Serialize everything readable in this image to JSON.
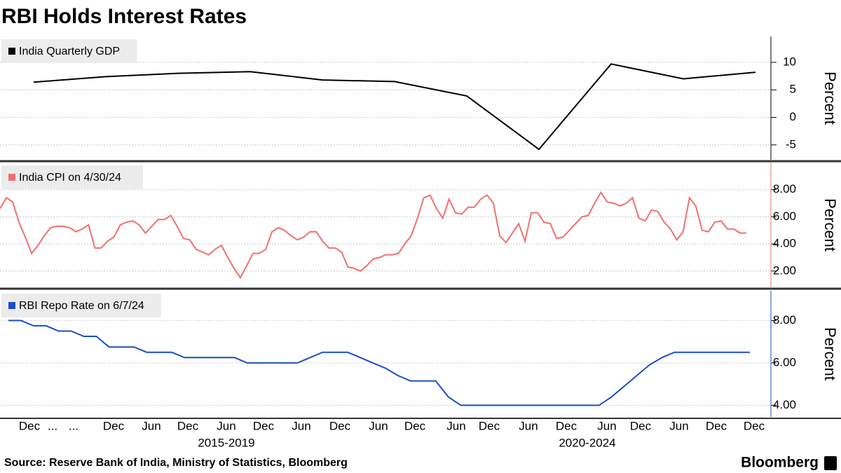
{
  "title": "RBI Holds Interest Rates",
  "chart_data": [
    {
      "type": "line",
      "ylabel": "Percent",
      "ylim": [
        -7.7,
        14.7
      ],
      "yticks": [
        -5,
        0,
        5,
        10
      ],
      "series": [
        {
          "name": "India Quarterly GDP",
          "color": "#000000",
          "values": [
            6.4,
            7.4,
            8.0,
            8.3,
            6.8,
            6.5,
            3.9,
            -5.8,
            9.7,
            7.0,
            8.2
          ]
        }
      ]
    },
    {
      "type": "line",
      "ylabel": "Percent",
      "ylim": [
        0.8,
        10
      ],
      "yticks": [
        {
          "value": 2,
          "label": "2.00"
        },
        {
          "value": 4,
          "label": "4.00"
        },
        {
          "value": 6,
          "label": "6.00"
        },
        {
          "value": 8,
          "label": "8.00"
        }
      ],
      "series": [
        {
          "name": "India CPI on 4/30/24",
          "color": "#f07070",
          "values": [
            6.6,
            7.4,
            7.1,
            5.6,
            4.5,
            3.3,
            3.9,
            4.6,
            5.2,
            5.3,
            5.3,
            5.2,
            4.9,
            5.1,
            5.4,
            3.7,
            3.7,
            4.2,
            4.5,
            5.4,
            5.6,
            5.7,
            5.4,
            4.8,
            5.3,
            5.8,
            5.8,
            6.1,
            5.3,
            4.4,
            4.3,
            3.6,
            3.4,
            3.2,
            3.6,
            3.9,
            3.0,
            2.2,
            1.5,
            2.4,
            3.3,
            3.3,
            3.6,
            4.9,
            5.2,
            5.0,
            4.6,
            4.3,
            4.5,
            4.9,
            4.9,
            4.2,
            3.7,
            3.7,
            3.4,
            2.3,
            2.2,
            2.0,
            2.4,
            2.9,
            3.0,
            3.2,
            3.2,
            3.3,
            4.0,
            4.6,
            5.9,
            7.4,
            7.6,
            6.6,
            5.9,
            7.3,
            6.3,
            6.2,
            6.7,
            6.7,
            7.3,
            7.6,
            7.0,
            4.6,
            4.1,
            4.8,
            5.5,
            4.2,
            6.3,
            6.3,
            5.6,
            5.5,
            4.4,
            4.5,
            5.0,
            5.5,
            6.0,
            6.1,
            7.0,
            7.8,
            7.1,
            7.0,
            6.8,
            7.0,
            7.4,
            5.9,
            5.7,
            6.5,
            6.4,
            5.6,
            5.1,
            4.3,
            4.9,
            7.4,
            6.8,
            5.0,
            4.9,
            5.6,
            5.7,
            5.1,
            5.1,
            4.8,
            4.8
          ]
        }
      ]
    },
    {
      "type": "line",
      "ylabel": "Percent",
      "ylim": [
        3.45,
        9.4
      ],
      "yticks": [
        {
          "value": 4,
          "label": "4.00"
        },
        {
          "value": 6,
          "label": "6.00"
        },
        {
          "value": 8,
          "label": "8.00"
        }
      ],
      "series": [
        {
          "name": "RBI Repo Rate on 6/7/24",
          "color": "#1a4fc4",
          "values": [
            8.0,
            8.0,
            7.75,
            7.75,
            7.5,
            7.5,
            7.25,
            7.25,
            6.75,
            6.75,
            6.75,
            6.5,
            6.5,
            6.5,
            6.25,
            6.25,
            6.25,
            6.25,
            6.25,
            6.0,
            6.0,
            6.0,
            6.0,
            6.0,
            6.25,
            6.5,
            6.5,
            6.5,
            6.25,
            6.0,
            5.75,
            5.4,
            5.15,
            5.15,
            5.15,
            4.4,
            4.0,
            4.0,
            4.0,
            4.0,
            4.0,
            4.0,
            4.0,
            4.0,
            4.0,
            4.0,
            4.0,
            4.0,
            4.4,
            4.9,
            5.4,
            5.9,
            6.25,
            6.5,
            6.5,
            6.5,
            6.5,
            6.5,
            6.5,
            6.5
          ]
        }
      ]
    }
  ],
  "x_axis": {
    "labels": [
      "Dec",
      "...",
      "...",
      "Dec",
      "Jun",
      "Dec",
      "Jun",
      "Dec",
      "Jun",
      "Dec",
      "Jun",
      "Dec",
      "Jun",
      "Dec",
      "Jun",
      "Dec",
      "Jun",
      "Dec",
      "Jun",
      "Dec",
      "Dec"
    ],
    "periods": [
      "2015-2019",
      "2020-2024"
    ]
  },
  "source": "Source: Reserve Bank of India, Ministry of Statistics, Bloomberg",
  "brand": "Bloomberg"
}
